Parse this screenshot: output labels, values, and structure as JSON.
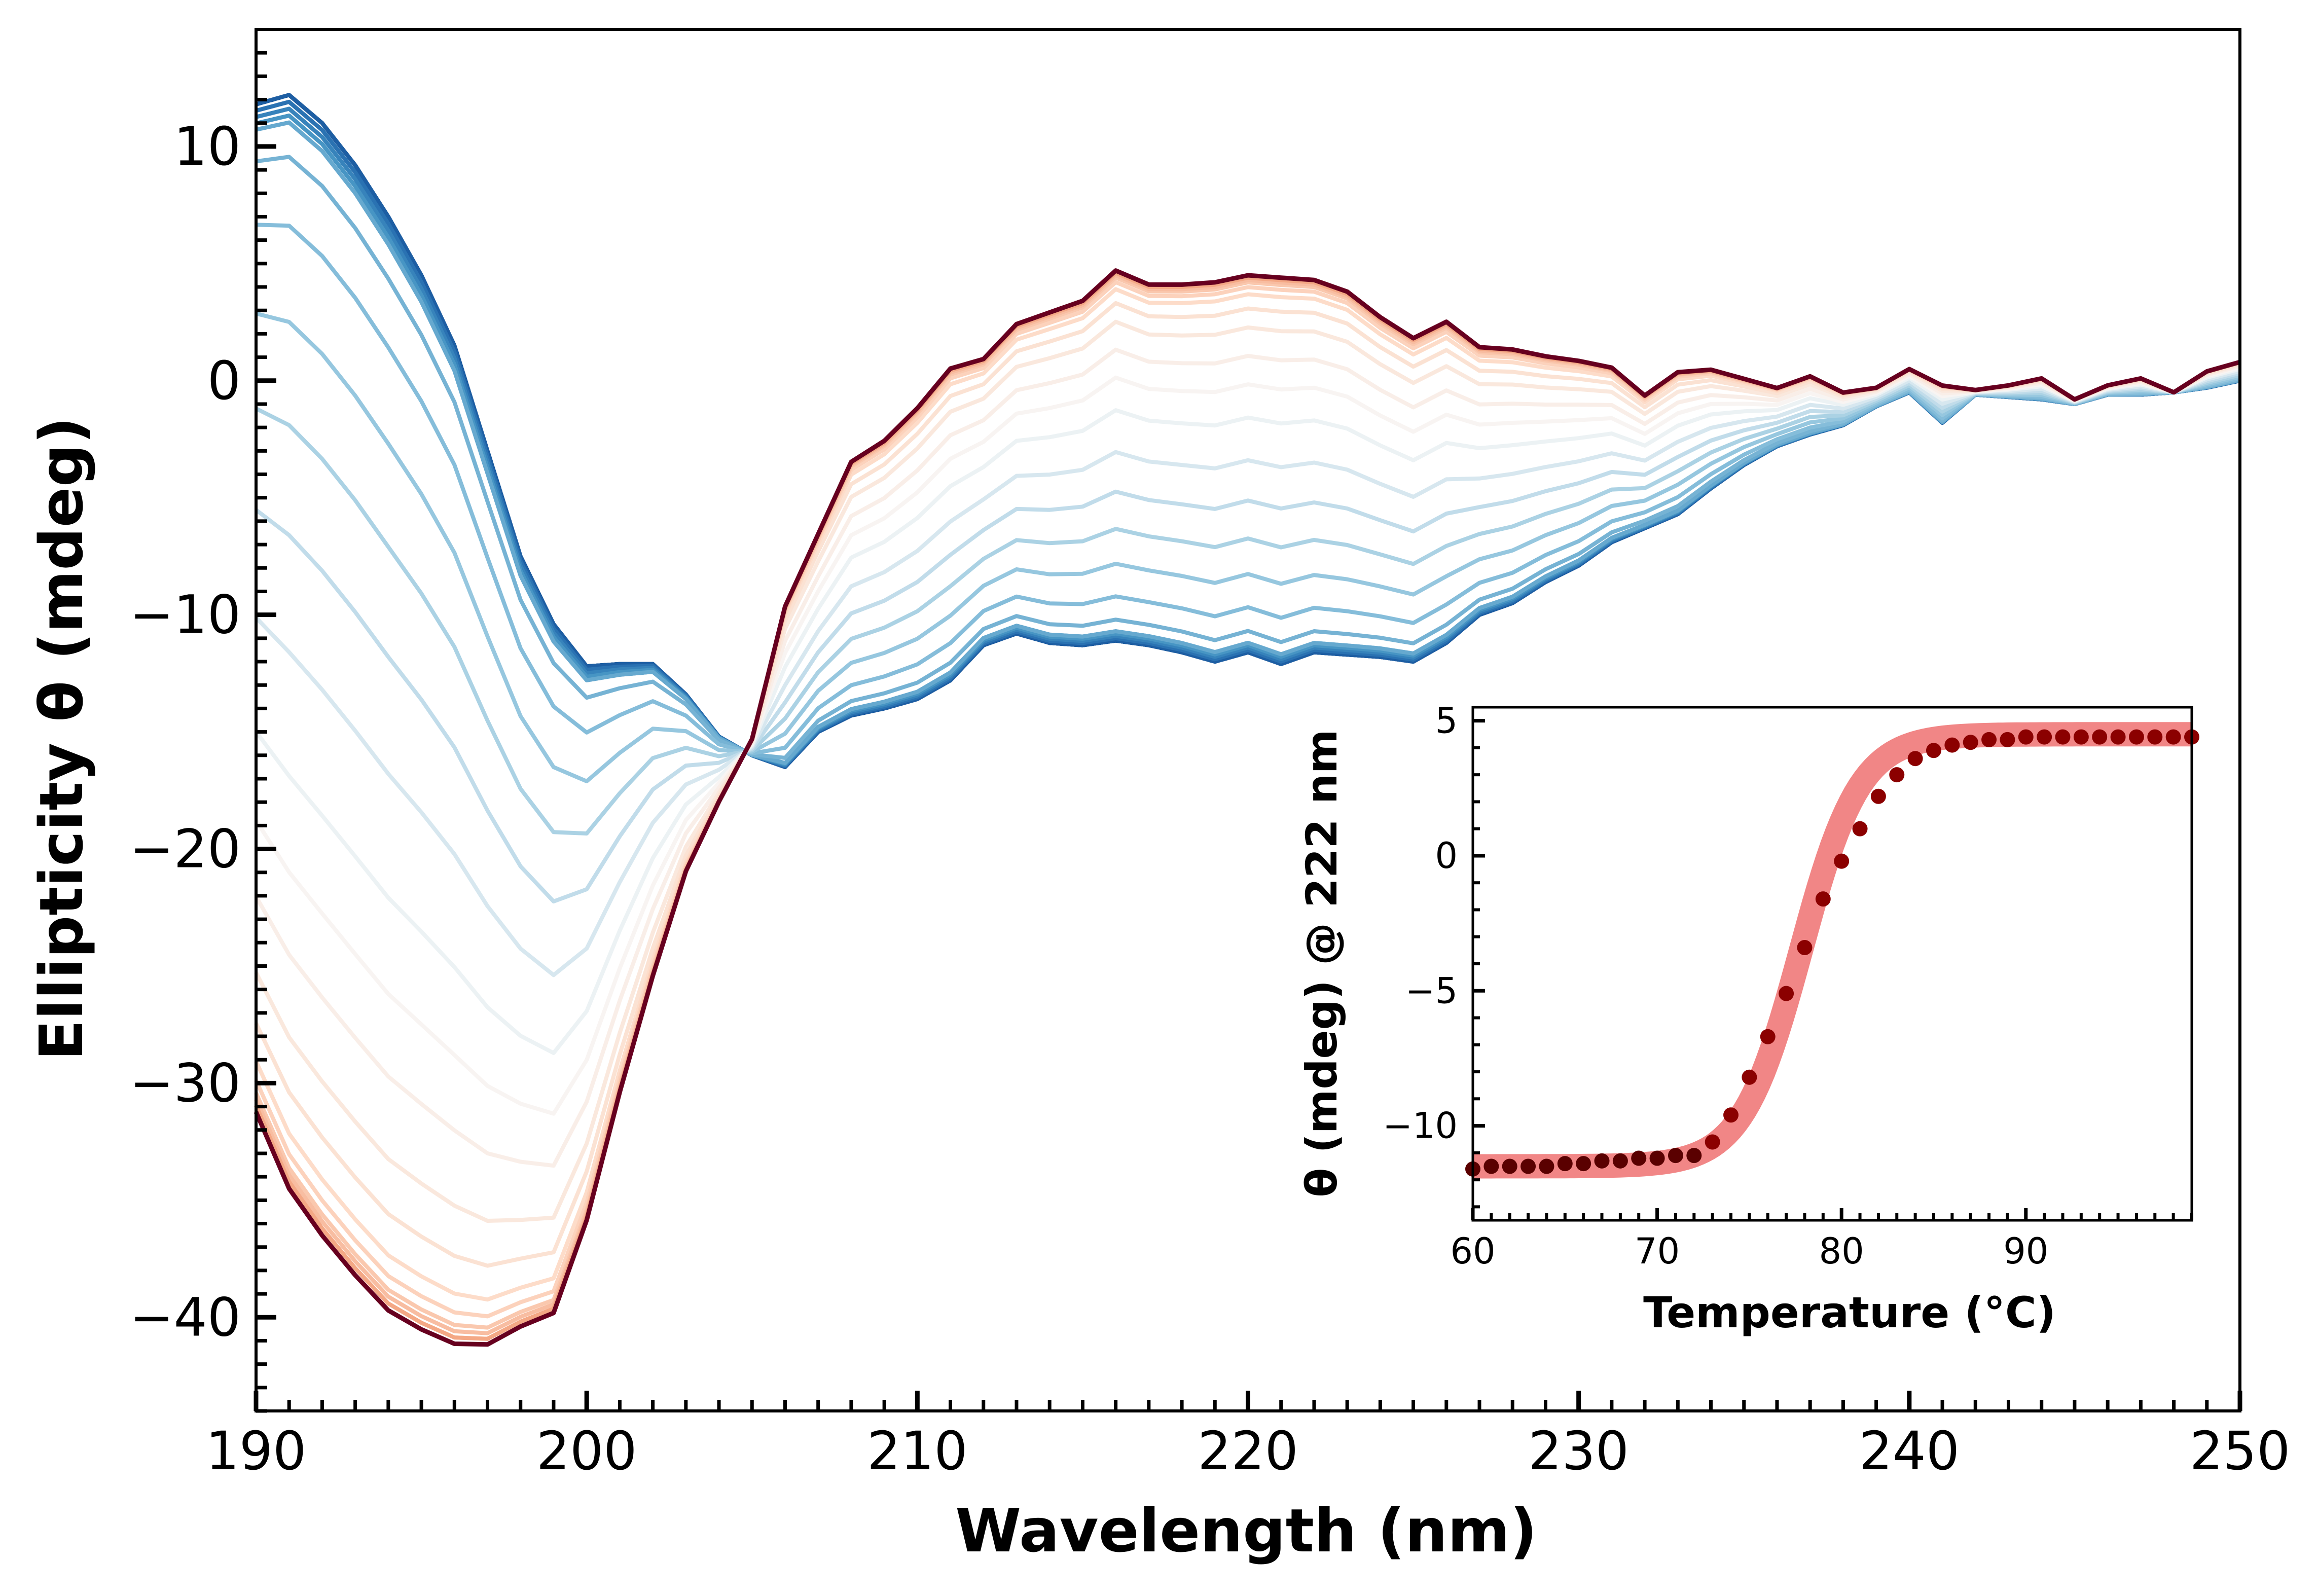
{
  "chart_data": [
    {
      "type": "line",
      "title": "",
      "xlabel": "Wavelength (nm)",
      "ylabel": "Ellipticity θ (mdeg)",
      "xlim": [
        190,
        250
      ],
      "ylim": [
        -44,
        15
      ],
      "xticks": [
        "190",
        "200",
        "210",
        "220",
        "230",
        "240",
        "250"
      ],
      "yticks": [
        "10",
        "0",
        "−10",
        "−20",
        "−30",
        "−40"
      ],
      "grid": false,
      "legend": "none",
      "color_scale": {
        "cold": "#08306b",
        "mid": "#f7f7f7",
        "hot": "#67001f"
      },
      "x": [
        190,
        191,
        192,
        193,
        194,
        195,
        196,
        197,
        198,
        199,
        200,
        201,
        202,
        203,
        204,
        205,
        206,
        207,
        208,
        209,
        210,
        211,
        212,
        213,
        214,
        215,
        216,
        217,
        218,
        219,
        220,
        221,
        222,
        223,
        224,
        225,
        226,
        227,
        228,
        229,
        230,
        231,
        232,
        233,
        234,
        235,
        236,
        237,
        238,
        239,
        240,
        241,
        242,
        243,
        244,
        245,
        246,
        247,
        248,
        249,
        250
      ],
      "series_cold_first": [
        11.8,
        12.2,
        11.0,
        9.2,
        7.0,
        4.5,
        1.5,
        -3.0,
        -7.5,
        -10.4,
        -12.2,
        -12.1,
        -12.1,
        -13.4,
        -15.2,
        -16.0,
        -16.5,
        -15.0,
        -14.3,
        -14.0,
        -13.6,
        -12.8,
        -11.3,
        -10.8,
        -11.2,
        -11.3,
        -11.1,
        -11.3,
        -11.6,
        -12.0,
        -11.6,
        -12.1,
        -11.6,
        -11.7,
        -11.8,
        -12.0,
        -11.2,
        -10.0,
        -9.5,
        -8.6,
        -7.9,
        -6.9,
        -6.3,
        -5.7,
        -4.6,
        -3.6,
        -2.8,
        -2.3,
        -1.9,
        -1.1,
        -0.5,
        -1.8,
        -0.6,
        -0.7,
        -0.8,
        -1.0,
        -0.6,
        -0.6,
        -0.5,
        -0.3,
        0.0
      ],
      "series_hot_final": [
        -31.5,
        -34.8,
        -36.8,
        -38.5,
        -40.0,
        -40.8,
        -41.4,
        -41.4,
        -40.6,
        -40.0,
        -36.0,
        -30.5,
        -25.5,
        -21.0,
        -18.0,
        -15.3,
        -9.6,
        -6.5,
        -3.4,
        -2.5,
        -1.1,
        0.6,
        1.0,
        2.5,
        3.0,
        3.5,
        4.8,
        4.2,
        4.2,
        4.3,
        4.6,
        4.5,
        4.4,
        3.9,
        2.8,
        1.9,
        2.6,
        1.5,
        1.4,
        1.1,
        0.9,
        0.6,
        -0.6,
        0.4,
        0.5,
        0.1,
        -0.3,
        0.2,
        -0.5,
        -0.3,
        0.5,
        -0.2,
        -0.4,
        -0.2,
        0.1,
        -0.8,
        -0.2,
        0.1,
        -0.5,
        0.4,
        0.8
      ]
    },
    {
      "type": "scatter",
      "title": "",
      "xlabel": "Temperature (°C)",
      "ylabel": "θ (mdeg) @ 222 nm",
      "xlim": [
        60,
        99
      ],
      "ylim": [
        -13.5,
        5.5
      ],
      "xticks": [
        "60",
        "70",
        "80",
        "90"
      ],
      "yticks": [
        "5",
        "0",
        "−5",
        "−10"
      ],
      "grid": false,
      "legend": "none",
      "point_color": "#8b0000",
      "fit_color": "#f08080",
      "fit": {
        "low": -11.5,
        "high": 4.5,
        "midpoint": 77.8,
        "width": 1.6
      },
      "x": [
        60,
        61,
        62,
        63,
        64,
        65,
        66,
        67,
        68,
        69,
        70,
        71,
        72,
        73,
        74,
        75,
        76,
        77,
        78,
        79,
        80,
        81,
        82,
        83,
        84,
        85,
        86,
        87,
        88,
        89,
        90,
        91,
        92,
        93,
        94,
        95,
        96,
        97,
        98,
        99
      ],
      "y": [
        -11.6,
        -11.5,
        -11.5,
        -11.5,
        -11.5,
        -11.4,
        -11.4,
        -11.3,
        -11.3,
        -11.2,
        -11.2,
        -11.1,
        -11.1,
        -10.6,
        -9.6,
        -8.2,
        -6.7,
        -5.1,
        -3.4,
        -1.6,
        -0.2,
        1.0,
        2.2,
        3.0,
        3.6,
        3.9,
        4.1,
        4.2,
        4.3,
        4.3,
        4.4,
        4.4,
        4.4,
        4.4,
        4.4,
        4.4,
        4.4,
        4.4,
        4.4,
        4.4
      ]
    }
  ]
}
